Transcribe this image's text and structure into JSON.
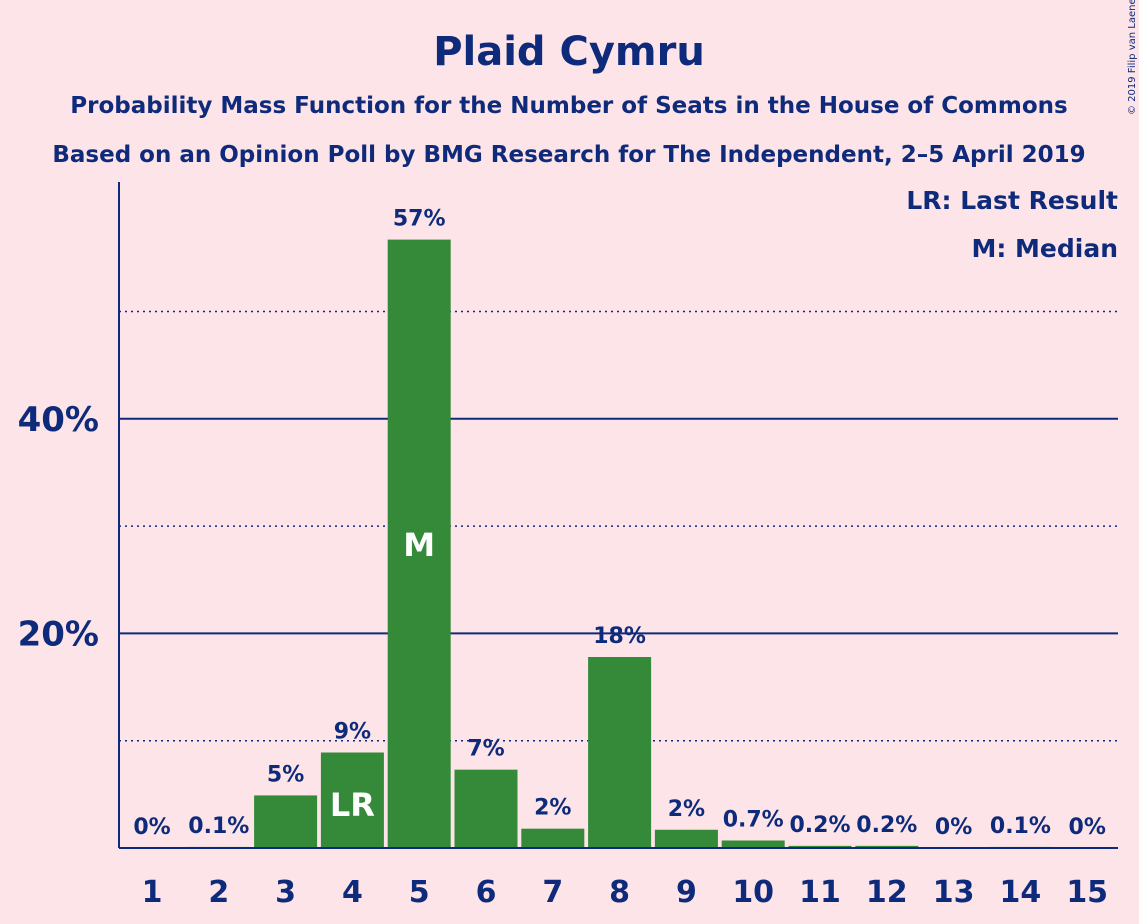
{
  "chart_data": {
    "type": "bar",
    "title": "Plaid Cymru",
    "subtitle_1": "Probability Mass Function for the Number of Seats in the House of Commons",
    "subtitle_2": "Based on an Opinion Poll by BMG Research for The Independent, 2–5 April 2019",
    "copyright": "© 2019 Filip van Laenen",
    "legend": [
      "LR: Last Result",
      "M: Median"
    ],
    "categories": [
      "1",
      "2",
      "3",
      "4",
      "5",
      "6",
      "7",
      "8",
      "9",
      "10",
      "11",
      "12",
      "13",
      "14",
      "15"
    ],
    "values": [
      0,
      0.1,
      4.9,
      8.9,
      56.7,
      7.3,
      1.8,
      17.8,
      1.7,
      0.7,
      0.2,
      0.2,
      0,
      0.1,
      0
    ],
    "value_labels": [
      "0%",
      "0.1%",
      "5%",
      "9%",
      "57%",
      "7%",
      "2%",
      "18%",
      "2%",
      "0.7%",
      "0.2%",
      "0.2%",
      "0%",
      "0.1%",
      "0%"
    ],
    "bar_marks": {
      "4": "LR",
      "5": "M"
    },
    "ylim": [
      0,
      62
    ],
    "yticks": [
      {
        "value": 20,
        "label": "20%"
      },
      {
        "value": 40,
        "label": "40%"
      }
    ],
    "minor_gridlines": [
      10,
      30,
      50
    ],
    "grid": true,
    "bar_color": "#358a3a",
    "text_color": "#0e2a7a",
    "background": "#fde4e8"
  }
}
